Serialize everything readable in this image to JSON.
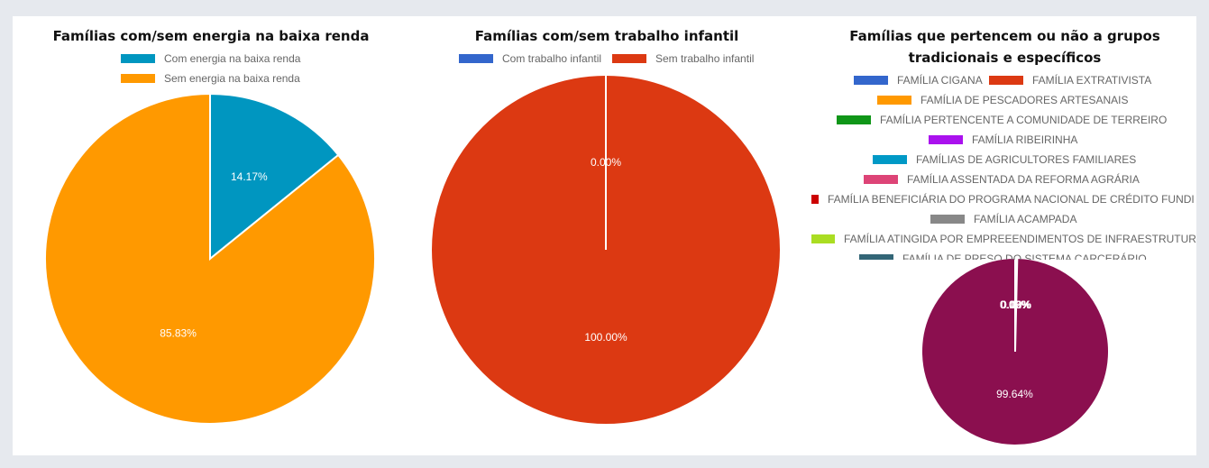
{
  "chart_data": [
    {
      "type": "pie",
      "title": "Famílias com/sem energia na baixa renda",
      "categories": [
        "Com energia na baixa renda",
        "Sem energia na baixa renda"
      ],
      "values": [
        14.17,
        85.83
      ],
      "labels": [
        "14.17%",
        "85.83%"
      ],
      "colors": [
        "#0096c0",
        "#ff9900"
      ],
      "legend": "top"
    },
    {
      "type": "pie",
      "title": "Famílias com/sem trabalho infantil",
      "categories": [
        "Com trabalho infantil",
        "Sem trabalho infantil"
      ],
      "values": [
        0.0,
        100.0
      ],
      "labels": [
        "0.00%",
        "100.00%"
      ],
      "colors": [
        "#3366cc",
        "#dc3912"
      ],
      "legend": "top"
    },
    {
      "type": "pie",
      "title": "Famílias que pertencem ou não a grupos tradicionais e específicos",
      "categories": [
        "FAMÍLIA CIGANA",
        "FAMÍLIA EXTRATIVISTA",
        "FAMÍLIA DE PESCADORES ARTESANAIS",
        "FAMÍLIA PERTENCENTE A COMUNIDADE DE TERREIRO",
        "FAMÍLIA RIBEIRINHA",
        "FAMÍLIAS DE AGRICULTORES FAMILIARES",
        "FAMÍLIA ASSENTADA DA REFORMA AGRÁRIA",
        "FAMÍLIA BENEFICIÁRIA DO PROGRAMA NACIONAL DE CRÉDITO FUNDI",
        "FAMÍLIA ACAMPADA",
        "FAMÍLIA ATINGIDA POR EMPREEENDIMENTOS DE INFRAESTRUTUR",
        "FAMÍLIA DE PRESO DO SISTEMA CARCERÁRIO",
        ""
      ],
      "values": [
        0.0,
        0.0,
        0.0,
        0.0,
        0.0,
        0.12,
        0.12,
        0.0,
        0.06,
        0.0,
        0.06,
        99.64
      ],
      "labels": [
        "0.00%",
        "0.00%",
        "0.00%",
        "0.00%",
        "0.00%",
        "0.12%",
        "0.12%",
        "0.00%",
        "0.06%",
        "0.00%",
        "0.06%",
        "99.64%"
      ],
      "colors": [
        "#3366cc",
        "#dc3912",
        "#ff9900",
        "#109618",
        "#990099",
        "#0099c6",
        "#dd4477",
        "#cc0000",
        "#888888",
        "#aadd22",
        "#336677",
        "#8b0f4f"
      ],
      "legend": "top"
    }
  ]
}
